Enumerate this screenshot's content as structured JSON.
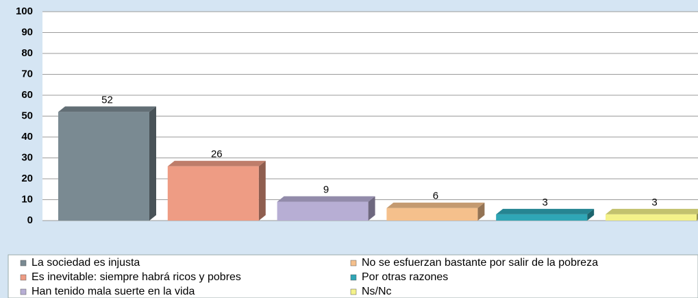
{
  "chart_data": {
    "type": "bar",
    "categories": [
      "La sociedad es injusta",
      "Es inevitable: siempre habrá ricos y pobres",
      "Han tenido mala suerte en la vida",
      "No se esfuerzan bastante por salir de la pobreza",
      "Por otras razones",
      "Ns/Nc"
    ],
    "values": [
      52,
      26,
      9,
      6,
      3,
      3
    ],
    "colors": [
      "#7a8a92",
      "#ee9c84",
      "#b7aed4",
      "#f5c08c",
      "#2fa6b6",
      "#f4f28a"
    ],
    "ylim": [
      0,
      100
    ],
    "yticks": [
      0,
      10,
      20,
      30,
      40,
      50,
      60,
      70,
      80,
      90,
      100
    ],
    "grid": true
  }
}
